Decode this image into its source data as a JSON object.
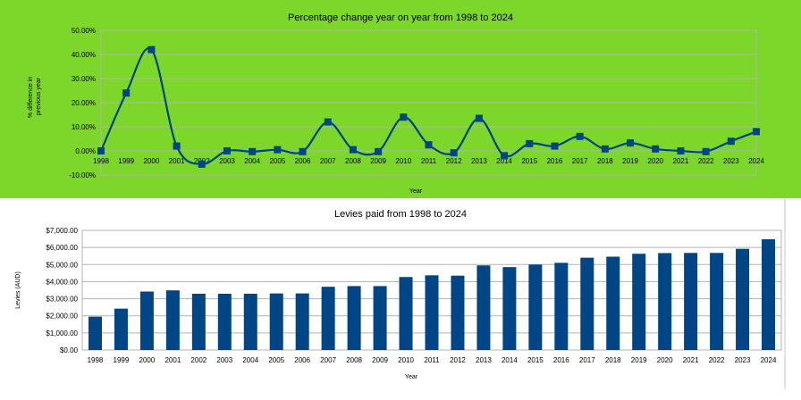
{
  "colors": {
    "top_background": "#7dd62a",
    "series": "#004586",
    "gridline": "#b3b3b3",
    "axis_text": "#000000"
  },
  "chart_data": [
    {
      "type": "line",
      "title": "Percentage change year on year from 1998 to 2024",
      "xlabel": "Year",
      "ylabel": "% difference in previous year",
      "ylim": [
        -10,
        50
      ],
      "y_tick_labels": [
        "-10.00%",
        "0.00%",
        "10.00%",
        "20.00%",
        "30.00%",
        "40.00%",
        "50.00%"
      ],
      "grid": true,
      "smoothed": true,
      "x": [
        "1998",
        "1999",
        "2000",
        "2001",
        "2002",
        "2003",
        "2004",
        "2005",
        "2006",
        "2007",
        "2008",
        "2009",
        "2010",
        "2011",
        "2012",
        "2013",
        "2014",
        "2015",
        "2016",
        "2017",
        "2018",
        "2019",
        "2020",
        "2021",
        "2022",
        "2023",
        "2024"
      ],
      "values": [
        0,
        24,
        42,
        2,
        -5.5,
        0,
        -0.3,
        0.5,
        -0.3,
        12,
        0.5,
        -0.3,
        14,
        2.5,
        -0.8,
        13.5,
        -2,
        3,
        2,
        6,
        0.8,
        3.3,
        0.8,
        0,
        -0.3,
        4,
        8
      ]
    },
    {
      "type": "bar",
      "title": "Levies paid from 1998 to 2024",
      "xlabel": "Year",
      "ylabel": "Levies (AUD)",
      "ylim": [
        0,
        7000
      ],
      "y_tick_labels": [
        "$0.00",
        "$1,000.00",
        "$2,000.00",
        "$3,000.00",
        "$4,000.00",
        "$5,000.00",
        "$6,000.00",
        "$7,000.00"
      ],
      "grid": true,
      "categories": [
        "1998",
        "1999",
        "2000",
        "2001",
        "2002",
        "2003",
        "2004",
        "2005",
        "2006",
        "2007",
        "2008",
        "2009",
        "2010",
        "2011",
        "2012",
        "2013",
        "2014",
        "2015",
        "2016",
        "2017",
        "2018",
        "2019",
        "2020",
        "2021",
        "2022",
        "2023",
        "2024"
      ],
      "values": [
        1950,
        2420,
        3420,
        3490,
        3290,
        3290,
        3290,
        3310,
        3310,
        3700,
        3740,
        3740,
        4270,
        4370,
        4350,
        4950,
        4850,
        5000,
        5100,
        5400,
        5460,
        5630,
        5670,
        5680,
        5680,
        5920,
        6480
      ]
    }
  ]
}
